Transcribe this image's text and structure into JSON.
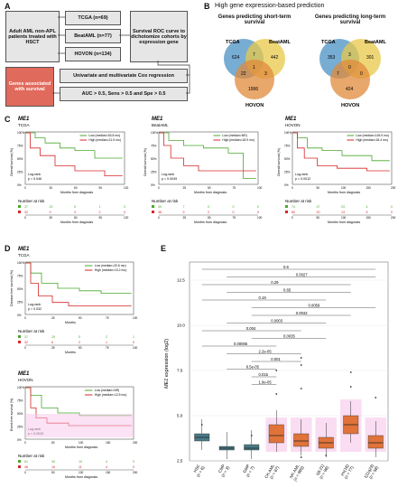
{
  "panels": {
    "A": "A",
    "B": "B",
    "C": "C",
    "D": "D",
    "E": "E"
  },
  "panelA": {
    "patients_box": "Adult AML non-APL patients treated with HSCT",
    "cohorts": [
      "TCGA (n=69)",
      "BeatAML (n=77)",
      "HOVON (n=134)"
    ],
    "roc_box": "Survival ROC curve to dichotomize cohorts by expression gene",
    "genes_box": "Genes associated with survival",
    "cox_box": "Univariate and multivariate Cox regression",
    "criteria_box": "AUC > 0.5, Sens > 0.5 and Spe > 0.5"
  },
  "panelB": {
    "title": "High gene expression-based prediction",
    "short_title": "Genes predicting short-term survival",
    "long_title": "Genes predicting long-term survival",
    "short": {
      "labels": [
        "TCGA",
        "BeatAML",
        "HOVON"
      ],
      "values": [
        "624",
        "442",
        "7",
        "1",
        "22",
        "3",
        "1996"
      ]
    },
    "long": {
      "labels": [
        "TCGA",
        "BeatAML",
        "HOVON"
      ],
      "values": [
        "353",
        "301",
        "3",
        "0",
        "7",
        "0",
        "424"
      ]
    }
  },
  "panelC": {
    "gene": "ME1",
    "ylabel": "Overall survival (%)",
    "xlabel": "Months from diagnosis",
    "risk_title": "Number at risk",
    "plots": [
      {
        "cohort": "TCGA",
        "low": "Low (median=53.8 mo)",
        "high": "High (median=21.5 mo)",
        "pval": "Log-rank\np = 0.046",
        "xticks": [
          "0",
          "30",
          "60",
          "90",
          "120"
        ],
        "risk_low": [
          "37",
          "20",
          "5",
          "1",
          "0"
        ],
        "risk_high": [
          "32",
          "9",
          "3",
          "2",
          "0"
        ]
      },
      {
        "cohort": "BeatAML",
        "low": "Low (median=NR)",
        "high": "High (median=18.9 mo)",
        "pval": "Log-rank\np = 0.0049",
        "xticks": [
          "0",
          "25",
          "50",
          "75",
          "100"
        ],
        "risk_low": [
          "39",
          "7",
          "0",
          "0",
          "0"
        ],
        "risk_high": [
          "38",
          "9",
          "2",
          "0",
          "0"
        ]
      },
      {
        "cohort": "HOVON",
        "low": "Low (median=145.9 mo)",
        "high": "High (median=18.4 mo)",
        "pval": "Log-rank\np = 0.0012",
        "xticks": [
          "0",
          "50",
          "100",
          "150",
          "200"
        ],
        "risk_low": [
          "74",
          "47",
          "23",
          "4",
          "0"
        ],
        "risk_high": [
          "60",
          "20",
          "13",
          "5",
          "0"
        ]
      }
    ]
  },
  "panelD": {
    "gene": "ME1",
    "xlabel_top": "Months",
    "xlabel_bottom": "Months from diagnosis",
    "risk_title": "Number at risk",
    "plots": [
      {
        "cohort": "TCGA",
        "ylabel": "Disease-free survival (%)",
        "low": "Low (median=20.6 mo)",
        "high": "High (median=10.2 mo)",
        "pval": "Log-rank\np = 0.032",
        "xticks": [
          "0",
          "25",
          "50",
          "75",
          "100"
        ],
        "risk_low": [
          "37",
          "15",
          "5",
          "2",
          "1"
        ],
        "risk_high": [
          "32",
          "6",
          "2",
          "1",
          "0"
        ]
      },
      {
        "cohort": "HOVON",
        "ylabel": "Event-free survival (%)",
        "low": "Low (median=NR)",
        "high": "High (median=12.5 mo)",
        "pval": "Log-rank\np = 0.0043",
        "xticks": [
          "0",
          "50",
          "100",
          "150",
          "200"
        ],
        "risk_low": [
          "61",
          "39",
          "19",
          "4",
          "0"
        ],
        "risk_high": [
          "46",
          "16",
          "11",
          "4",
          "0"
        ]
      }
    ]
  },
  "panelE": {
    "ylabel_gene": "ME1",
    "ylabel_rest": " expression (log2)",
    "yticks": [
      "2.5",
      "5.0",
      "7.5",
      "10.0",
      "12.5"
    ],
    "categories": [
      "HSC\n(n = 6)",
      "CMP\n(n = 3)",
      "GMP\n(n = 7)",
      "CK-AML\n(n = 87)",
      "NK-AML\n(n = 989)",
      "t(8;21)\n(n = 98)",
      "inv(16)\n(n = 77)",
      "t(11q23)\n(n = 58)"
    ],
    "pvalues": [
      "0.6",
      "0.0027",
      "0.29",
      "0.65",
      "0.19",
      "0.0059",
      "0.0042",
      "0.0003",
      "0.004",
      "0.0035",
      "0.00065",
      "2.2e-05",
      "0.001",
      "6.5e-05",
      "0.015",
      "1.9e-05"
    ]
  },
  "colors": {
    "low": "#4aa82e",
    "high": "#d62728",
    "box": "#e0733a",
    "highlight": "#f7c6ea",
    "venn_tcga": "#4a90c4",
    "venn_beat": "#e8c84a",
    "venn_hovon": "#e08a3a"
  },
  "chart_data": [
    {
      "type": "box",
      "categories": [
        "HSC",
        "CMP",
        "GMP",
        "CK-AML",
        "NK-AML",
        "t(8;21)",
        "inv(16)",
        "t(11q23)"
      ],
      "medians": [
        3.8,
        3.2,
        3.2,
        3.9,
        3.6,
        3.5,
        4.5,
        3.5
      ],
      "q1": [
        3.6,
        3.1,
        3.1,
        3.5,
        3.3,
        3.2,
        4.0,
        3.2
      ],
      "q3": [
        4.0,
        3.3,
        3.4,
        4.5,
        4.0,
        3.8,
        5.0,
        3.9
      ],
      "ylim": [
        2.5,
        13.5
      ],
      "ylabel": "ME1 expression (log2)"
    }
  ]
}
